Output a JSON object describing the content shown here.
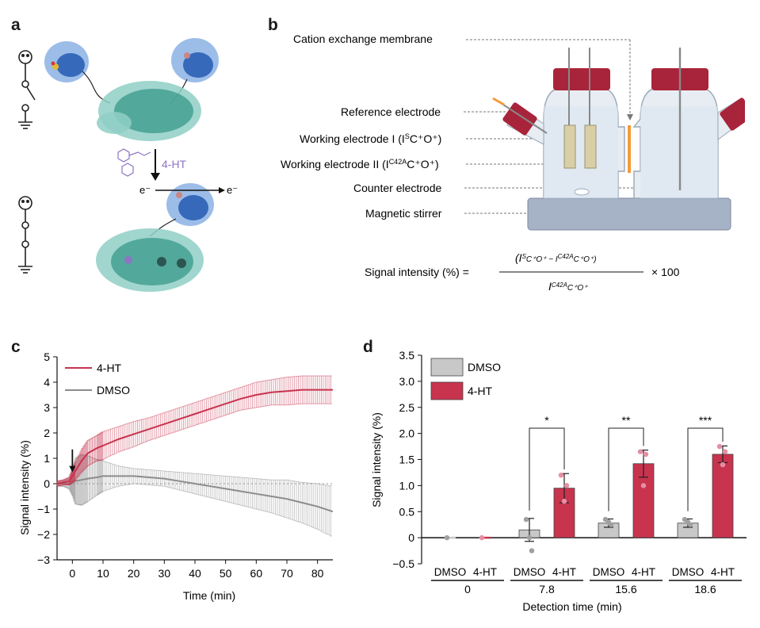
{
  "panel_letters": {
    "a": "a",
    "b": "b",
    "c": "c",
    "d": "d"
  },
  "panel_a": {
    "ligand_label": "4-HT",
    "electron_in": "e⁻",
    "electron_out": "e⁻"
  },
  "panel_b": {
    "labels": {
      "membrane": "Cation exchange membrane",
      "reference": "Reference electrode",
      "working1": "Working electrode I (I",
      "working1_sup": "S",
      "working1_rest": "C⁺O⁺)",
      "working2": "Working electrode II (I",
      "working2_sup": "C42A",
      "working2_rest": "C⁺O⁺)",
      "counter": "Counter electrode",
      "stirrer": "Magnetic stirrer"
    },
    "formula": {
      "lhs": "Signal intensity (%) =",
      "numerator": "(I",
      "numerator_sup1": "S",
      "numerator_mid": "C⁺O⁺ − I",
      "numerator_sup2": "C42A",
      "numerator_end": "C⁺O⁺)",
      "denominator": "I",
      "denominator_sup": "C42A",
      "denominator_end": "C⁺O⁺",
      "multiplier": "× 100"
    },
    "colors": {
      "cap": "#a8243a",
      "stirrer": "#a6b2c6",
      "glass": "#e8edf3",
      "membrane": "#f29b3b"
    }
  },
  "chart_data": [
    {
      "type": "line",
      "panel": "c",
      "xlabel": "Time (min)",
      "ylabel": "Signal intensity (%)",
      "xlim": [
        -5,
        85
      ],
      "ylim": [
        -3,
        5
      ],
      "xticks": [
        "0",
        "10",
        "20",
        "30",
        "40",
        "50",
        "60",
        "70",
        "80"
      ],
      "yticks": [
        "−3",
        "−2",
        "−1",
        "0",
        "1",
        "2",
        "3",
        "4",
        "5"
      ],
      "legend_position": "top-left",
      "arrow_at_x": 0,
      "series": [
        {
          "name": "4-HT",
          "color": "#c8334e",
          "x": [
            -5,
            -3,
            -1,
            0,
            1,
            3,
            5,
            8,
            10,
            15,
            20,
            25,
            30,
            35,
            40,
            45,
            50,
            55,
            60,
            65,
            70,
            75,
            80,
            85
          ],
          "y": [
            0.0,
            0.05,
            0.1,
            0.3,
            0.5,
            0.9,
            1.2,
            1.4,
            1.5,
            1.75,
            1.95,
            2.15,
            2.35,
            2.55,
            2.75,
            2.95,
            3.15,
            3.35,
            3.5,
            3.6,
            3.65,
            3.7,
            3.7,
            3.7
          ],
          "err": [
            0.1,
            0.1,
            0.15,
            0.25,
            0.35,
            0.45,
            0.5,
            0.5,
            0.55,
            0.5,
            0.5,
            0.45,
            0.45,
            0.45,
            0.45,
            0.45,
            0.45,
            0.45,
            0.5,
            0.5,
            0.55,
            0.55,
            0.55,
            0.55
          ]
        },
        {
          "name": "DMSO",
          "color": "#8c8c8c",
          "x": [
            -5,
            -3,
            -1,
            0,
            1,
            3,
            5,
            8,
            10,
            15,
            20,
            25,
            30,
            35,
            40,
            45,
            50,
            55,
            60,
            65,
            70,
            75,
            80,
            85
          ],
          "y": [
            0.0,
            0.0,
            0.0,
            0.05,
            0.1,
            0.15,
            0.2,
            0.25,
            0.3,
            0.3,
            0.3,
            0.25,
            0.2,
            0.1,
            0.0,
            -0.1,
            -0.2,
            -0.3,
            -0.4,
            -0.5,
            -0.6,
            -0.75,
            -0.9,
            -1.1
          ],
          "err": [
            0.1,
            0.1,
            0.2,
            0.5,
            0.9,
            1.0,
            0.9,
            0.7,
            0.6,
            0.4,
            0.3,
            0.3,
            0.3,
            0.35,
            0.4,
            0.45,
            0.5,
            0.55,
            0.6,
            0.65,
            0.75,
            0.8,
            0.9,
            1.0
          ]
        }
      ]
    },
    {
      "type": "bar",
      "panel": "d",
      "xlabel": "Detection time (min)",
      "ylabel": "Signal intensity (%)",
      "ylim": [
        -0.5,
        3.5
      ],
      "yticks": [
        "−0.5",
        "0",
        "0.5",
        "1.0",
        "1.5",
        "2.0",
        "2.5",
        "3.0",
        "3.5"
      ],
      "legend_position": "top-left",
      "groups": [
        "0",
        "7.8",
        "15.6",
        "18.6"
      ],
      "group_labels": [
        [
          "DMSO",
          "4-HT"
        ],
        [
          "DMSO",
          "4-HT"
        ],
        [
          "DMSO",
          "4-HT"
        ],
        [
          "DMSO",
          "4-HT"
        ]
      ],
      "significance": [
        "",
        "*",
        "**",
        "***"
      ],
      "series": [
        {
          "name": "DMSO",
          "color": "#c8c8c8",
          "values": [
            0.0,
            0.15,
            0.28,
            0.28
          ],
          "err": [
            0.0,
            0.22,
            0.08,
            0.08
          ]
        },
        {
          "name": "4-HT",
          "color": "#c8334e",
          "values": [
            0.0,
            0.95,
            1.42,
            1.6
          ],
          "err": [
            0.0,
            0.28,
            0.26,
            0.16
          ]
        }
      ],
      "points": [
        [
          [
            0.0
          ],
          [
            0.0
          ]
        ],
        [
          [
            0.35,
            -0.25,
            0.0
          ],
          [
            1.2,
            1.0,
            0.7
          ]
        ],
        [
          [
            0.35,
            0.25,
            0.3
          ],
          [
            1.65,
            1.6,
            1.0
          ]
        ],
        [
          [
            0.35,
            0.25,
            0.3
          ],
          [
            1.75,
            1.65,
            1.4
          ]
        ]
      ]
    }
  ]
}
